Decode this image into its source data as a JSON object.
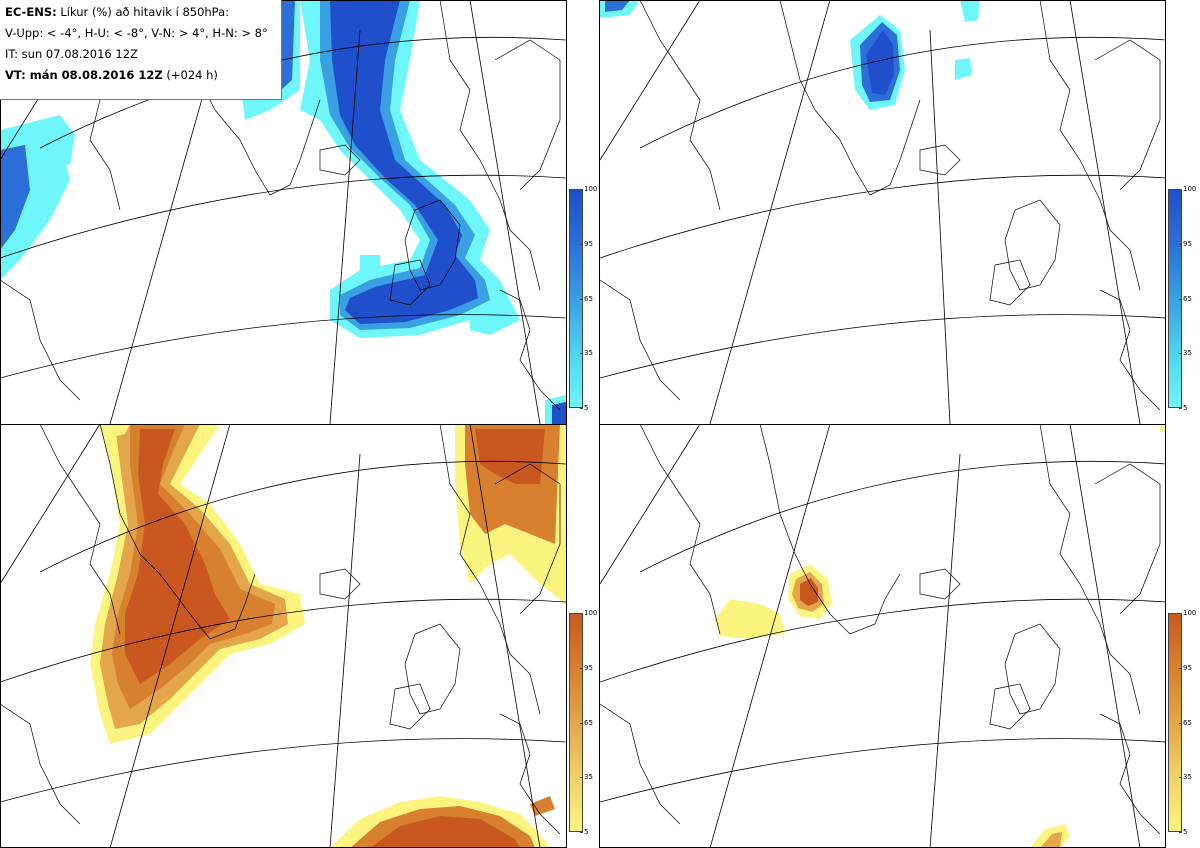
{
  "infobox": {
    "line1_bold": "EC-ENS:",
    "line1_rest": "Líkur (%) að hitavik í 850hPa:",
    "line2": "V-Upp: < -4°, H-U: < -8°, V-N: > 4°, H-N: > 8°",
    "line3": "IT: sun 07.08.2016 12Z",
    "line4_bold": "VT: mán 08.08.2016 12Z",
    "line4_rest": "(+024 h)"
  },
  "colors": {
    "blue": [
      "#6ff6fb",
      "#4fd3ef",
      "#3a9fe3",
      "#2c6fd8",
      "#1f4fca"
    ],
    "orange": [
      "#fbf580",
      "#f1d16a",
      "#e3a64a",
      "#d7802f",
      "#c95820"
    ]
  },
  "colorbar_ticks": [
    "100",
    "95",
    "65",
    "35",
    "5"
  ],
  "panels": [
    {
      "id": "top-left",
      "palette": "blue"
    },
    {
      "id": "top-right",
      "palette": "blue"
    },
    {
      "id": "bottom-left",
      "palette": "orange"
    },
    {
      "id": "bottom-right",
      "palette": "orange"
    }
  ]
}
